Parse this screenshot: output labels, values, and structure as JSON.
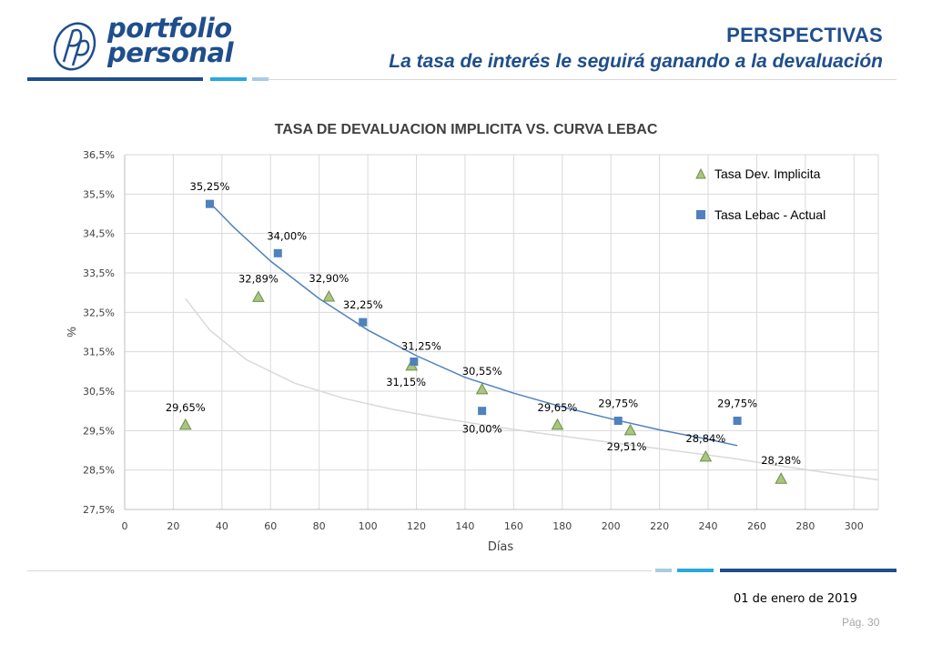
{
  "header": {
    "brand_line1": "portfolio",
    "brand_line2": "personal",
    "title": "PERSPECTIVAS",
    "subtitle": "La tasa de interés le seguirá ganando a la devaluación"
  },
  "colors": {
    "brand": "#1f4e8c",
    "accent": "#29a8e0",
    "light_accent": "#a9cce3",
    "series_implicita": "#a9c57f",
    "series_lebac": "#4f81bd"
  },
  "footer": {
    "date": "01 de enero de 2019",
    "page": "Pág. 30"
  },
  "chart_data": {
    "type": "scatter",
    "title": "TASA DE DEVALUACION IMPLICITA VS. CURVA LEBAC",
    "xlabel": "Días",
    "ylabel": "%",
    "xlim": [
      0,
      310
    ],
    "ylim": [
      27.5,
      36.5
    ],
    "x_ticks": [
      "0",
      "20",
      "40",
      "60",
      "80",
      "100",
      "120",
      "140",
      "160",
      "180",
      "200",
      "220",
      "240",
      "260",
      "280",
      "300"
    ],
    "y_ticks": [
      "27,5%",
      "28,5%",
      "29,5%",
      "30,5%",
      "31,5%",
      "32,5%",
      "33,5%",
      "34,5%",
      "35,5%",
      "36,5%"
    ],
    "grid": true,
    "legend_position": "top-right",
    "series": [
      {
        "name": "Tasa Dev. Implicita",
        "marker": "triangle",
        "points": [
          {
            "x": 25,
            "y": 29.65,
            "label": "29,65%"
          },
          {
            "x": 55,
            "y": 32.89,
            "label": "32,89%"
          },
          {
            "x": 84,
            "y": 32.9,
            "label": "32,90%"
          },
          {
            "x": 118,
            "y": 31.15,
            "label": "31,15%"
          },
          {
            "x": 147,
            "y": 30.55,
            "label": "30,55%"
          },
          {
            "x": 178,
            "y": 29.65,
            "label": "29,65%"
          },
          {
            "x": 208,
            "y": 29.51,
            "label": "29,51%"
          },
          {
            "x": 239,
            "y": 28.84,
            "label": "28,84%"
          },
          {
            "x": 270,
            "y": 28.28,
            "label": "28,28%"
          }
        ]
      },
      {
        "name": "Tasa Lebac - Actual",
        "marker": "square",
        "points": [
          {
            "x": 35,
            "y": 35.25,
            "label": "35,25%"
          },
          {
            "x": 63,
            "y": 34.0,
            "label": "34,00%"
          },
          {
            "x": 98,
            "y": 32.25,
            "label": "32,25%"
          },
          {
            "x": 119,
            "y": 31.25,
            "label": "31,25%"
          },
          {
            "x": 147,
            "y": 30.0,
            "label": "30,00%"
          },
          {
            "x": 203,
            "y": 29.75,
            "label": "29,75%"
          },
          {
            "x": 252,
            "y": 29.75,
            "label": "29,75%"
          }
        ]
      }
    ],
    "trendlines": [
      {
        "series": "Tasa Dev. Implicita",
        "x": [
          25,
          35,
          50,
          70,
          90,
          110,
          130,
          150,
          170,
          190,
          210,
          230,
          250,
          270,
          290,
          310
        ],
        "y": [
          32.85,
          32.05,
          31.3,
          30.7,
          30.32,
          30.04,
          29.82,
          29.62,
          29.44,
          29.28,
          29.12,
          28.96,
          28.8,
          28.6,
          28.42,
          28.25
        ]
      },
      {
        "series": "Tasa Lebac - Actual",
        "x": [
          35,
          45,
          60,
          80,
          100,
          120,
          140,
          160,
          180,
          200,
          220,
          240,
          252
        ],
        "y": [
          35.28,
          34.65,
          33.8,
          32.85,
          32.05,
          31.4,
          30.85,
          30.45,
          30.1,
          29.8,
          29.52,
          29.28,
          29.12
        ]
      }
    ]
  }
}
